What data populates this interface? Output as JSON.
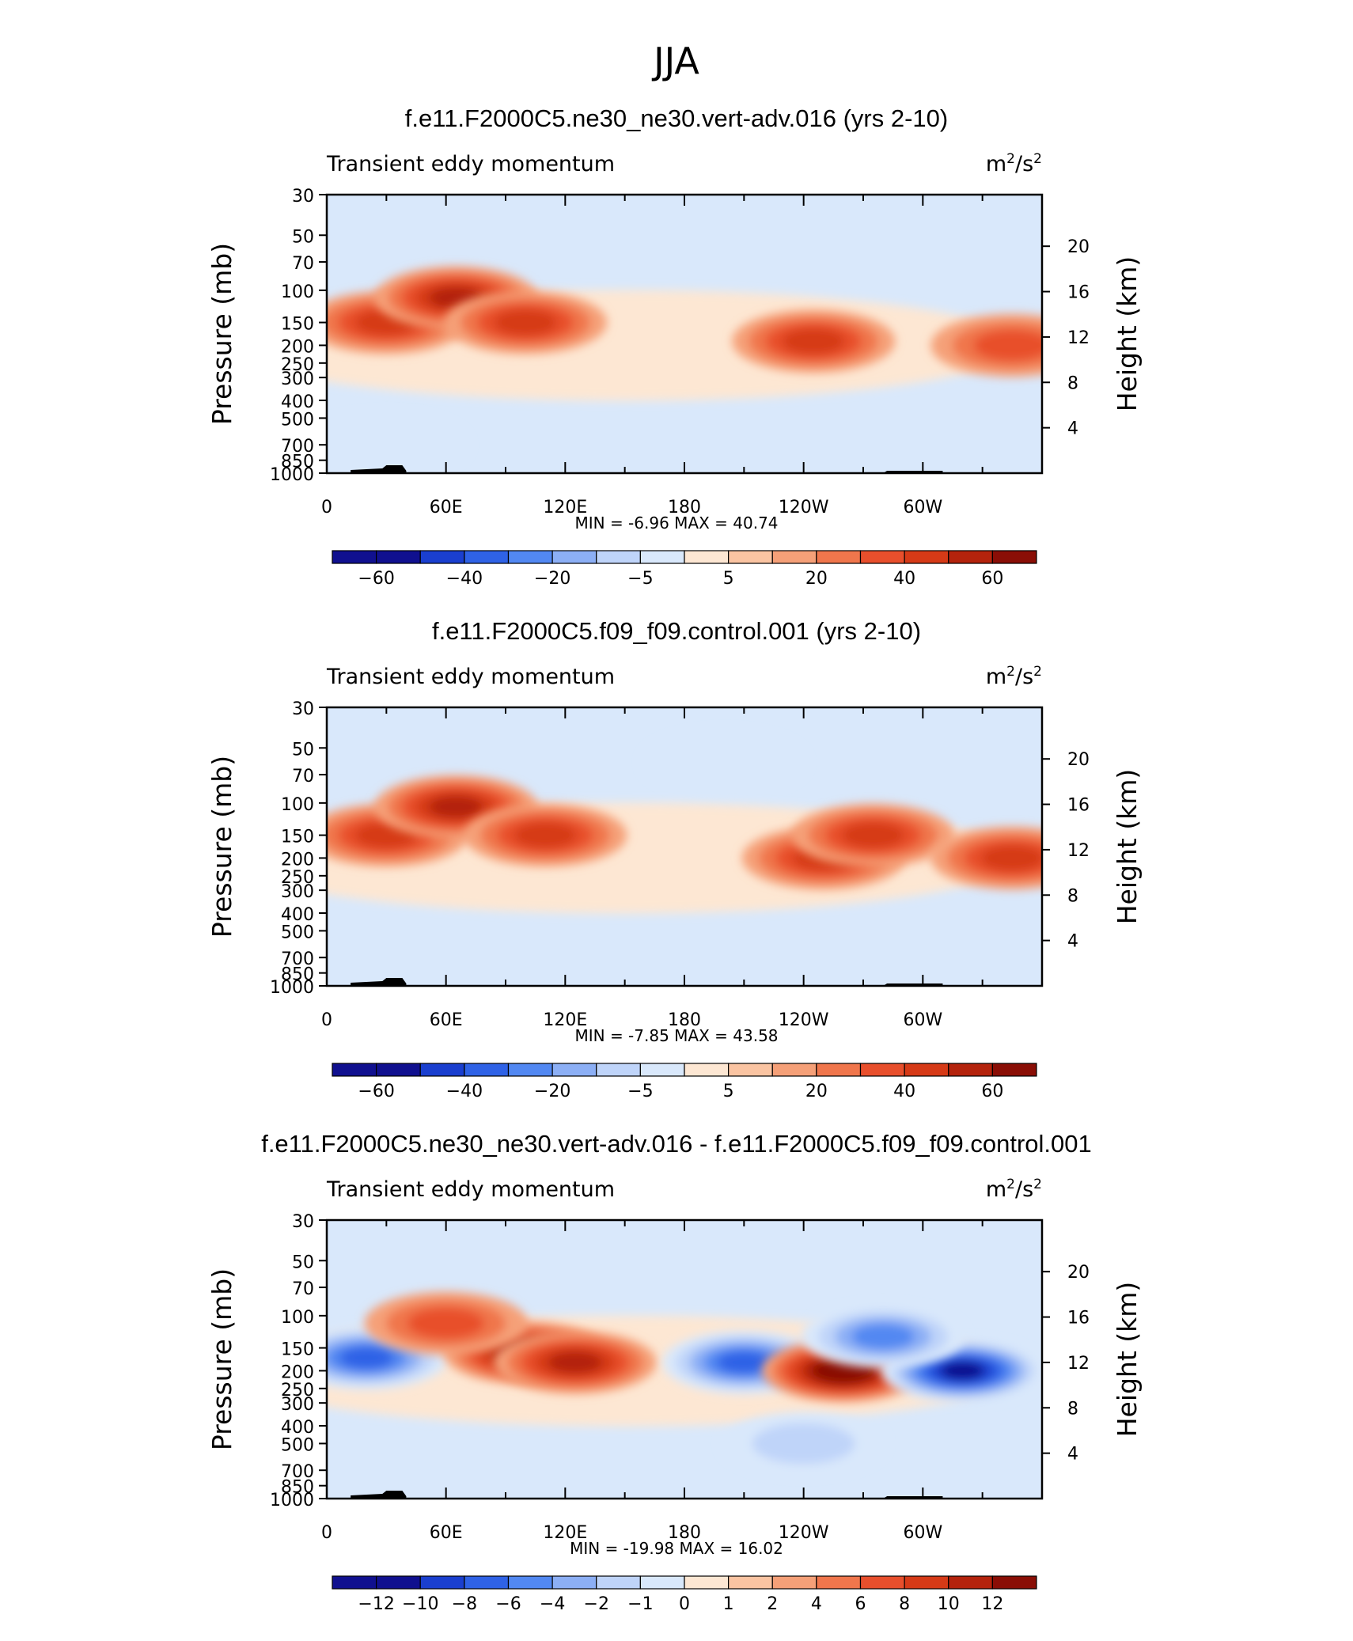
{
  "figure": {
    "title": "JJA"
  },
  "chart_data": [
    {
      "type": "heatmap",
      "title": "f.e11.F2000C5.ne30_ne30.vert-adv.016 (yrs 2-10)",
      "subtitle_left": "Transient eddy momentum",
      "units": "m²/s²",
      "units_base": "m",
      "units_mid": "/s",
      "units_exp": "2",
      "ylabel": "Pressure (mb)",
      "ylabel_right": "Height (km)",
      "y_ticks": [
        "30",
        "50",
        "70",
        "100",
        "150",
        "200",
        "250",
        "300",
        "400",
        "500",
        "700",
        "850",
        "1000"
      ],
      "y2_ticks": [
        "20",
        "16",
        "12",
        "8",
        "4"
      ],
      "x_ticks": [
        "0",
        "60E",
        "120E",
        "180",
        "120W",
        "60W"
      ],
      "stats_text": "MIN =   -6.96   MAX =   40.74",
      "min": -6.96,
      "max": 40.74,
      "colorbar_labels": [
        "-60",
        "-40",
        "-20",
        "-5",
        "5",
        "20",
        "40",
        "60"
      ],
      "contour_levels": [
        -70,
        -60,
        -50,
        -40,
        -30,
        -20,
        -10,
        -5,
        0,
        5,
        10,
        20,
        30,
        40,
        50,
        60,
        70
      ],
      "colors": [
        "#10108f",
        "#1a3fcf",
        "#2f62e6",
        "#5288f2",
        "#8caff5",
        "#bfd4f9",
        "#d9e8fb",
        "#fde7d3",
        "#fac4a2",
        "#f5a078",
        "#f0764c",
        "#e84f2c",
        "#d63a17",
        "#b4230c",
        "#8a0e06"
      ],
      "features": [
        {
          "lon": 30,
          "p": 150,
          "value": 34
        },
        {
          "lon": 65,
          "p": 110,
          "value": 40.74
        },
        {
          "lon": 100,
          "p": 150,
          "value": 37
        },
        {
          "lon": 245,
          "p": 190,
          "value": 31
        },
        {
          "lon": 345,
          "p": 200,
          "value": 28
        },
        {
          "lon": 30,
          "p": 700,
          "value": -6.96
        }
      ]
    },
    {
      "type": "heatmap",
      "title": "f.e11.F2000C5.f09_f09.control.001 (yrs 2-10)",
      "subtitle_left": "Transient eddy momentum",
      "units": "m²/s²",
      "units_base": "m",
      "units_mid": "/s",
      "units_exp": "2",
      "ylabel": "Pressure (mb)",
      "ylabel_right": "Height (km)",
      "y_ticks": [
        "30",
        "50",
        "70",
        "100",
        "150",
        "200",
        "250",
        "300",
        "400",
        "500",
        "700",
        "850",
        "1000"
      ],
      "y2_ticks": [
        "20",
        "16",
        "12",
        "8",
        "4"
      ],
      "x_ticks": [
        "0",
        "60E",
        "120E",
        "180",
        "120W",
        "60W"
      ],
      "stats_text": "MIN =   -7.85   MAX =   43.58",
      "min": -7.85,
      "max": 43.58,
      "colorbar_labels": [
        "-60",
        "-40",
        "-20",
        "-5",
        "5",
        "20",
        "40",
        "60"
      ],
      "contour_levels": [
        -70,
        -60,
        -50,
        -40,
        -30,
        -20,
        -10,
        -5,
        0,
        5,
        10,
        20,
        30,
        40,
        50,
        60,
        70
      ],
      "colors": [
        "#10108f",
        "#1a3fcf",
        "#2f62e6",
        "#5288f2",
        "#8caff5",
        "#bfd4f9",
        "#d9e8fb",
        "#fde7d3",
        "#fac4a2",
        "#f5a078",
        "#f0764c",
        "#e84f2c",
        "#d63a17",
        "#b4230c",
        "#8a0e06"
      ],
      "features": [
        {
          "lon": 30,
          "p": 150,
          "value": 38
        },
        {
          "lon": 65,
          "p": 105,
          "value": 43.58
        },
        {
          "lon": 110,
          "p": 150,
          "value": 30
        },
        {
          "lon": 250,
          "p": 200,
          "value": 30
        },
        {
          "lon": 275,
          "p": 150,
          "value": 35
        },
        {
          "lon": 345,
          "p": 200,
          "value": 30
        },
        {
          "lon": 200,
          "p": 60,
          "value": -7.85
        }
      ]
    },
    {
      "type": "heatmap",
      "title": "f.e11.F2000C5.ne30_ne30.vert-adv.016 - f.e11.F2000C5.f09_f09.control.001",
      "subtitle_left": "Transient eddy momentum",
      "units": "m²/s²",
      "units_base": "m",
      "units_mid": "/s",
      "units_exp": "2",
      "ylabel": "Pressure (mb)",
      "ylabel_right": "Height (km)",
      "y_ticks": [
        "30",
        "50",
        "70",
        "100",
        "150",
        "200",
        "250",
        "300",
        "400",
        "500",
        "700",
        "850",
        "1000"
      ],
      "y2_ticks": [
        "20",
        "16",
        "12",
        "8",
        "4"
      ],
      "x_ticks": [
        "0",
        "60E",
        "120E",
        "180",
        "120W",
        "60W"
      ],
      "stats_text": "MIN =  -19.98   MAX =   16.02",
      "min": -19.98,
      "max": 16.02,
      "colorbar_labels": [
        "-12",
        "-10",
        "-8",
        "-6",
        "-4",
        "-2",
        "-1",
        "0",
        "1",
        "2",
        "4",
        "6",
        "8",
        "10",
        "12"
      ],
      "contour_levels": [
        -14,
        -12,
        -10,
        -8,
        -6,
        -4,
        -2,
        -1,
        0,
        1,
        2,
        4,
        6,
        8,
        10,
        12,
        14
      ],
      "colors": [
        "#10108f",
        "#1a3fcf",
        "#2f62e6",
        "#5288f2",
        "#8caff5",
        "#bfd4f9",
        "#d9e8fb",
        "#fde7d3",
        "#fac4a2",
        "#f5a078",
        "#f0764c",
        "#e84f2c",
        "#d63a17",
        "#b4230c",
        "#8a0e06"
      ],
      "features": [
        {
          "lon": 20,
          "p": 170,
          "value": -8
        },
        {
          "lon": 100,
          "p": 160,
          "value": 11
        },
        {
          "lon": 125,
          "p": 180,
          "value": 9
        },
        {
          "lon": 210,
          "p": 180,
          "value": -8
        },
        {
          "lon": 260,
          "p": 200,
          "value": 16.02
        },
        {
          "lon": 320,
          "p": 200,
          "value": -19.98
        },
        {
          "lon": 280,
          "p": 130,
          "value": -6
        },
        {
          "lon": 60,
          "p": 110,
          "value": 4
        },
        {
          "lon": 240,
          "p": 500,
          "value": -3
        }
      ]
    }
  ]
}
